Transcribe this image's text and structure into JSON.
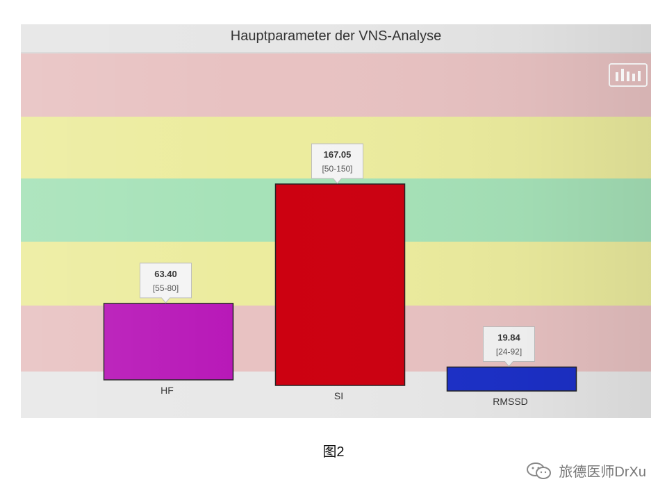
{
  "chart_data": {
    "type": "bar",
    "title": "Hauptparameter der VNS-Analyse",
    "categories": [
      "HF",
      "SI",
      "RMSSD"
    ],
    "values": [
      63.4,
      167.05,
      19.84
    ],
    "value_labels": [
      "63.40",
      "167.05",
      "19.84"
    ],
    "ranges": [
      "[55-80]",
      "[50-150]",
      "[24-92]"
    ],
    "bar_colors": [
      "#b818b8",
      "#cc0010",
      "#1c30c8"
    ],
    "band_colors": [
      "#e8c2c2",
      "#ecec9e",
      "#a6e2b8",
      "#ecec9e",
      "#e8c2c2"
    ],
    "grid": false,
    "legend": "none"
  },
  "caption": "图2",
  "watermark": {
    "icon": "wechat-icon",
    "text": "旅德医师DrXu"
  }
}
